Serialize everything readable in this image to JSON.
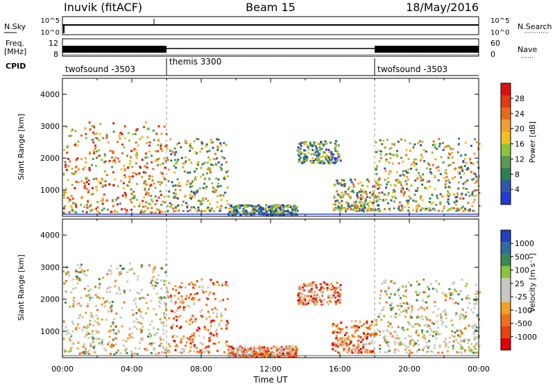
{
  "header": {
    "station": "Inuvik (fitACF)",
    "beam": "Beam 15",
    "date": "18/May/2016"
  },
  "top_panel": {
    "left_label": "N.Sky",
    "right_label": "N.Search",
    "left_ticks": [
      "10^5",
      "10^0"
    ],
    "right_ticks": [
      "10^5",
      "10^0"
    ]
  },
  "freq_panel": {
    "left_label_line1": "Freq.",
    "left_label_line2": "[MHz]",
    "right_label": "Nave",
    "left_ticks": [
      "12",
      "8"
    ],
    "right_ticks": [
      "60",
      "0"
    ]
  },
  "cpid_panel": {
    "label": "CPID",
    "segments": [
      {
        "label": "twofsound -3503",
        "start_hour": 0,
        "end_hour": 6
      },
      {
        "label": "themis 3300",
        "start_hour": 6,
        "end_hour": 18
      },
      {
        "label": "twofsound -3503",
        "start_hour": 18,
        "end_hour": 24
      }
    ]
  },
  "colors": {
    "power": [
      "#1f3bd8",
      "#2f58a8",
      "#2e7e52",
      "#5b9a4e",
      "#8ac43c",
      "#f0c020",
      "#f0a030",
      "#e86a18",
      "#e33a10",
      "#dd1010"
    ],
    "velocity": [
      "#e00000",
      "#e84010",
      "#f07018",
      "#f5a020",
      "#c8c8c0",
      "#c8c8c0",
      "#8ac43c",
      "#3a8a50",
      "#2f6aa0",
      "#2040c0"
    ]
  },
  "chart_data": [
    {
      "type": "heatmap",
      "title": "",
      "ylabel": "Slant Range [km]",
      "xlabel": "",
      "xlim": [
        0,
        24
      ],
      "ylim": [
        180,
        4500
      ],
      "yticks": [
        "1000",
        "2000",
        "3000",
        "4000"
      ],
      "colorbar": {
        "label": "Power [dB]",
        "range": [
          0,
          32
        ],
        "ticks": [
          "4",
          "8",
          "12",
          "16",
          "20",
          "24",
          "28"
        ]
      },
      "regions": [
        {
          "start_hour": 0.0,
          "end_hour": 6.0,
          "range_km": [
            250,
            3100
          ],
          "level": "high"
        },
        {
          "start_hour": 6.0,
          "end_hour": 9.5,
          "range_km": [
            300,
            2600
          ],
          "level": "medium"
        },
        {
          "start_hour": 9.5,
          "end_hour": 13.5,
          "range_km": [
            180,
            500
          ],
          "level": "low"
        },
        {
          "start_hour": 13.5,
          "end_hour": 16.0,
          "range_km": [
            1800,
            2500
          ],
          "level": "low"
        },
        {
          "start_hour": 15.5,
          "end_hour": 18.0,
          "range_km": [
            300,
            1300
          ],
          "level": "medium"
        },
        {
          "start_hour": 18.0,
          "end_hour": 24.0,
          "range_km": [
            300,
            2600
          ],
          "level": "medium"
        }
      ]
    },
    {
      "type": "heatmap",
      "title": "",
      "ylabel": "Slant Range [km]",
      "xlabel": "Time UT",
      "xlim": [
        0,
        24
      ],
      "ylim": [
        180,
        4500
      ],
      "xticks": [
        "00:00",
        "04:00",
        "08:00",
        "12:00",
        "16:00",
        "20:00",
        "00:00"
      ],
      "yticks": [
        "1000",
        "2000",
        "3000",
        "4000"
      ],
      "colorbar": {
        "label": "Velocity [m s⁻¹]",
        "ticks": [
          "1000",
          "500",
          "100",
          "25",
          "-25",
          "-100",
          "-500",
          "-1000"
        ]
      },
      "regions": [
        {
          "start_hour": 0.0,
          "end_hour": 6.0,
          "range_km": [
            250,
            3100
          ],
          "level": "mixed"
        },
        {
          "start_hour": 6.0,
          "end_hour": 9.5,
          "range_km": [
            300,
            2600
          ],
          "level": "low"
        },
        {
          "start_hour": 9.5,
          "end_hour": 13.5,
          "range_km": [
            180,
            500
          ],
          "level": "low"
        },
        {
          "start_hour": 13.5,
          "end_hour": 16.0,
          "range_km": [
            1800,
            2500
          ],
          "level": "low"
        },
        {
          "start_hour": 15.5,
          "end_hour": 18.0,
          "range_km": [
            300,
            1300
          ],
          "level": "negative"
        },
        {
          "start_hour": 18.0,
          "end_hour": 24.0,
          "range_km": [
            300,
            2600
          ],
          "level": "mixed"
        }
      ]
    }
  ]
}
